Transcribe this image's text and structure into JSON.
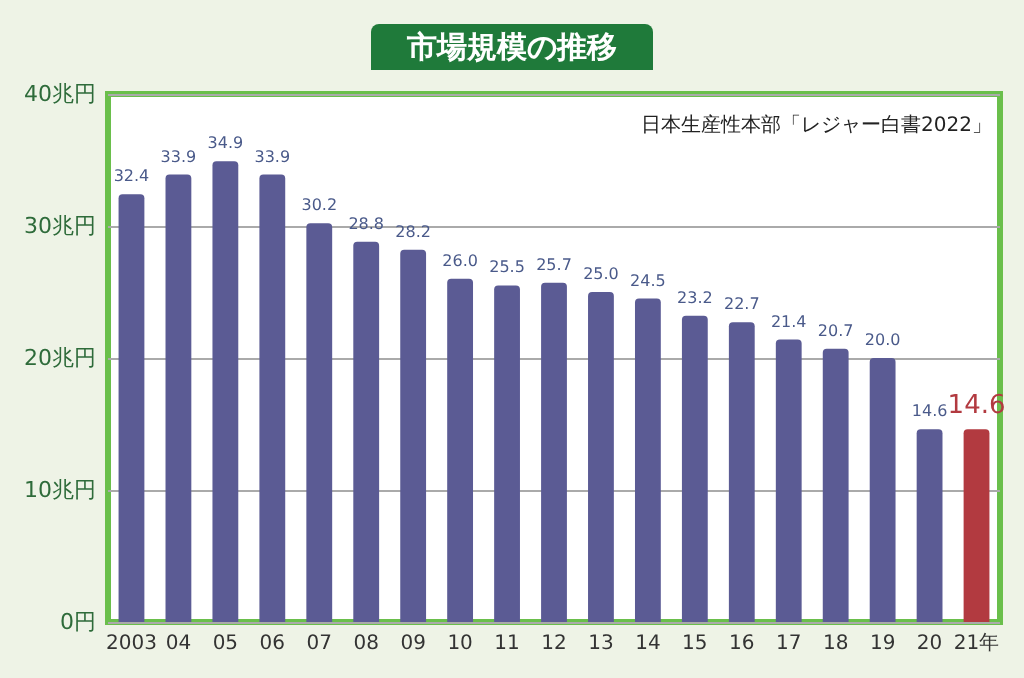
{
  "chart_data": {
    "type": "bar",
    "title": "市場規模の推移",
    "annotations": [
      "日本生産性本部「レジャー白書2022」"
    ],
    "categories": [
      "2003",
      "04",
      "05",
      "06",
      "07",
      "08",
      "09",
      "10",
      "11",
      "12",
      "13",
      "14",
      "15",
      "16",
      "17",
      "18",
      "19",
      "20",
      "21年"
    ],
    "values": [
      32.4,
      33.9,
      34.9,
      33.9,
      30.2,
      28.8,
      28.2,
      26.0,
      25.5,
      25.7,
      25.0,
      24.5,
      23.2,
      22.7,
      21.4,
      20.7,
      20.0,
      14.6,
      14.6
    ],
    "colors": [
      "#5b5b94",
      "#5b5b94",
      "#5b5b94",
      "#5b5b94",
      "#5b5b94",
      "#5b5b94",
      "#5b5b94",
      "#5b5b94",
      "#5b5b94",
      "#5b5b94",
      "#5b5b94",
      "#5b5b94",
      "#5b5b94",
      "#5b5b94",
      "#5b5b94",
      "#5b5b94",
      "#5b5b94",
      "#5b5b94",
      "#b23a40"
    ],
    "ylim": [
      0,
      40
    ],
    "yticks": [
      {
        "value": 0,
        "label": "0円"
      },
      {
        "value": 10,
        "label": "10兆円"
      },
      {
        "value": 20,
        "label": "20兆円"
      },
      {
        "value": 30,
        "label": "30兆円"
      },
      {
        "value": 40,
        "label": "40兆円"
      }
    ],
    "value_labels": [
      "32.4",
      "33.9",
      "34.9",
      "33.9",
      "30.2",
      "28.8",
      "28.2",
      "26.0",
      "25.5",
      "25.7",
      "25.0",
      "24.5",
      "23.2",
      "22.7",
      "21.4",
      "20.7",
      "20.0",
      "14.6",
      "14.6"
    ],
    "grid": "y"
  }
}
